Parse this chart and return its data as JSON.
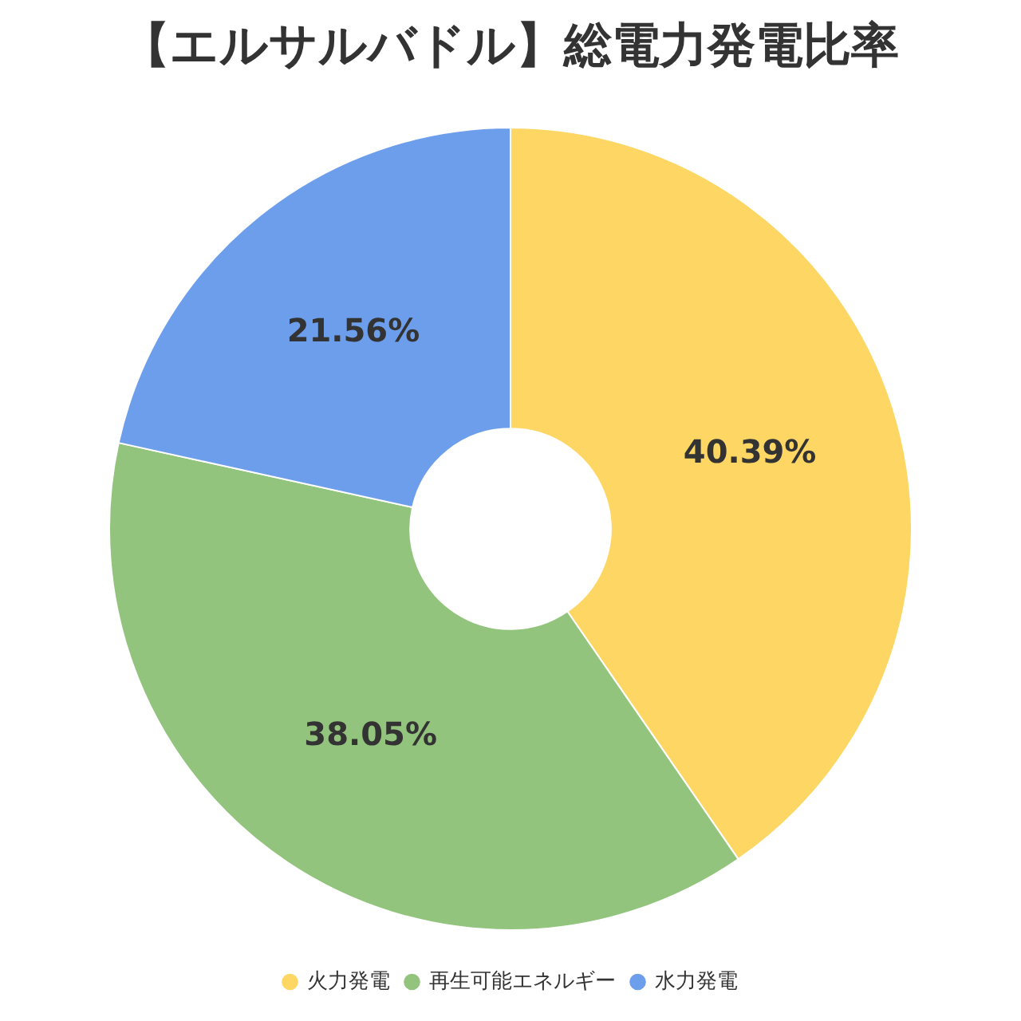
{
  "chart_data": {
    "type": "donut",
    "title": "【エルサルバドル】総電力発電比率",
    "categories": [
      "火力発電",
      "再生可能エネルギー",
      "水力発電"
    ],
    "values": [
      40.39,
      38.05,
      21.56
    ],
    "colors": [
      "#fdd663",
      "#93c47d",
      "#6d9eeb"
    ],
    "value_labels": [
      "40.39%",
      "38.05%",
      "21.56%"
    ],
    "legend": "bottom"
  }
}
